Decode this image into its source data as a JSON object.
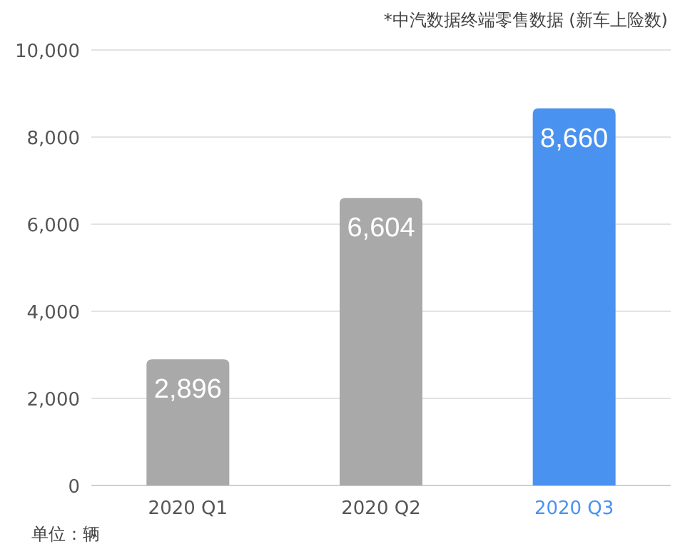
{
  "chart_data": {
    "type": "bar",
    "categories": [
      "2020 Q1",
      "2020 Q2",
      "2020 Q3"
    ],
    "values": [
      2896,
      6604,
      8660
    ],
    "colors": [
      "#a9a9a9",
      "#a9a9a9",
      "#4a92f0"
    ],
    "ylim": [
      0,
      10000
    ],
    "yticks": [
      0,
      {
        "value": 2000,
        "label": "2,000"
      },
      {
        "value": 4000,
        "label": "4,000"
      },
      {
        "value": 6000,
        "label": "6,000"
      },
      {
        "value": 8000,
        "label": "8,000"
      },
      {
        "value": 10000,
        "label": "10,000"
      }
    ],
    "grid": "y",
    "value_labels": [
      "2,896",
      "6,604",
      "8,660"
    ],
    "annotations": [
      "*中汽数据终端零售数据 (新车上险数)",
      "单位：辆"
    ]
  }
}
